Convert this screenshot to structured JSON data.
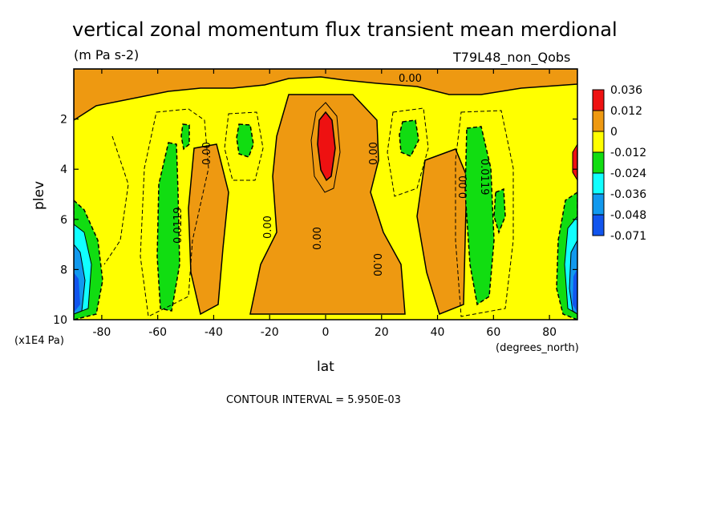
{
  "chart_data": {
    "type": "heatmap",
    "title": "vertical zonal momentum flux transient mean merdional",
    "units": "(m Pa s-2)",
    "experiment": "T79L48_non_Qobs",
    "xlabel": "lat",
    "x_units": "(degrees_north)",
    "ylabel": "plev",
    "y_units": "(x1E4 Pa)",
    "xlim": [
      -90,
      90
    ],
    "ylim": [
      10,
      0
    ],
    "x_ticks": [
      "-80",
      "-60",
      "-40",
      "-20",
      "0",
      "20",
      "40",
      "60",
      "80"
    ],
    "x_tick_values": [
      -80,
      -60,
      -40,
      -20,
      0,
      20,
      40,
      60,
      80
    ],
    "y_ticks": [
      "2",
      "4",
      "6",
      "8",
      "10"
    ],
    "y_tick_values": [
      2,
      4,
      6,
      8,
      10
    ],
    "contour_interval": "CONTOUR INTERVAL = 5.950E-03",
    "colorbar": {
      "labels": [
        "0.036",
        "0.012",
        "0",
        "-0.012",
        "-0.024",
        "-0.036",
        "-0.048",
        "-0.071"
      ],
      "colors": [
        "#ee1111",
        "#ee9911",
        "#ffff00",
        "#11dd11",
        "#11ffff",
        "#1199ee",
        "#1155ee"
      ]
    },
    "contour_labels": [
      "0.00",
      "0.00",
      "0.00",
      "0.00",
      "0.00",
      "0.00",
      "0.00",
      "0.00",
      "0.0119",
      "0.0119"
    ],
    "features": [
      {
        "lat": 0,
        "plev_range": [
          2.0,
          4.3
        ],
        "level": "> 0.012",
        "color": "#ee1111"
      },
      {
        "lat": 0,
        "plev_range": [
          1.3,
          9.7
        ],
        "level": "0 to 0.012",
        "color": "#ee9911"
      },
      {
        "lat": 45,
        "plev_range": [
          3.5,
          9.5
        ],
        "level": "0 to 0.012",
        "color": "#ee9911"
      },
      {
        "lat": -43,
        "plev_range": [
          3.0,
          9.5
        ],
        "level": "0 to 0.012",
        "color": "#ee9911"
      },
      {
        "lat": -57,
        "plev_range": [
          4.0,
          9.4
        ],
        "level": "-0.024 to -0.012",
        "color": "#11dd11"
      },
      {
        "lat": 56,
        "plev_range": [
          2.5,
          9.0
        ],
        "level": "-0.024 to -0.012",
        "color": "#11dd11"
      },
      {
        "lat": -88,
        "plev_range": [
          6.0,
          9.7
        ],
        "level": "< -0.036",
        "color": "#1199ee"
      },
      {
        "lat": 88,
        "plev_range": [
          6.0,
          9.7
        ],
        "level": "< -0.036",
        "color": "#1199ee"
      }
    ]
  }
}
